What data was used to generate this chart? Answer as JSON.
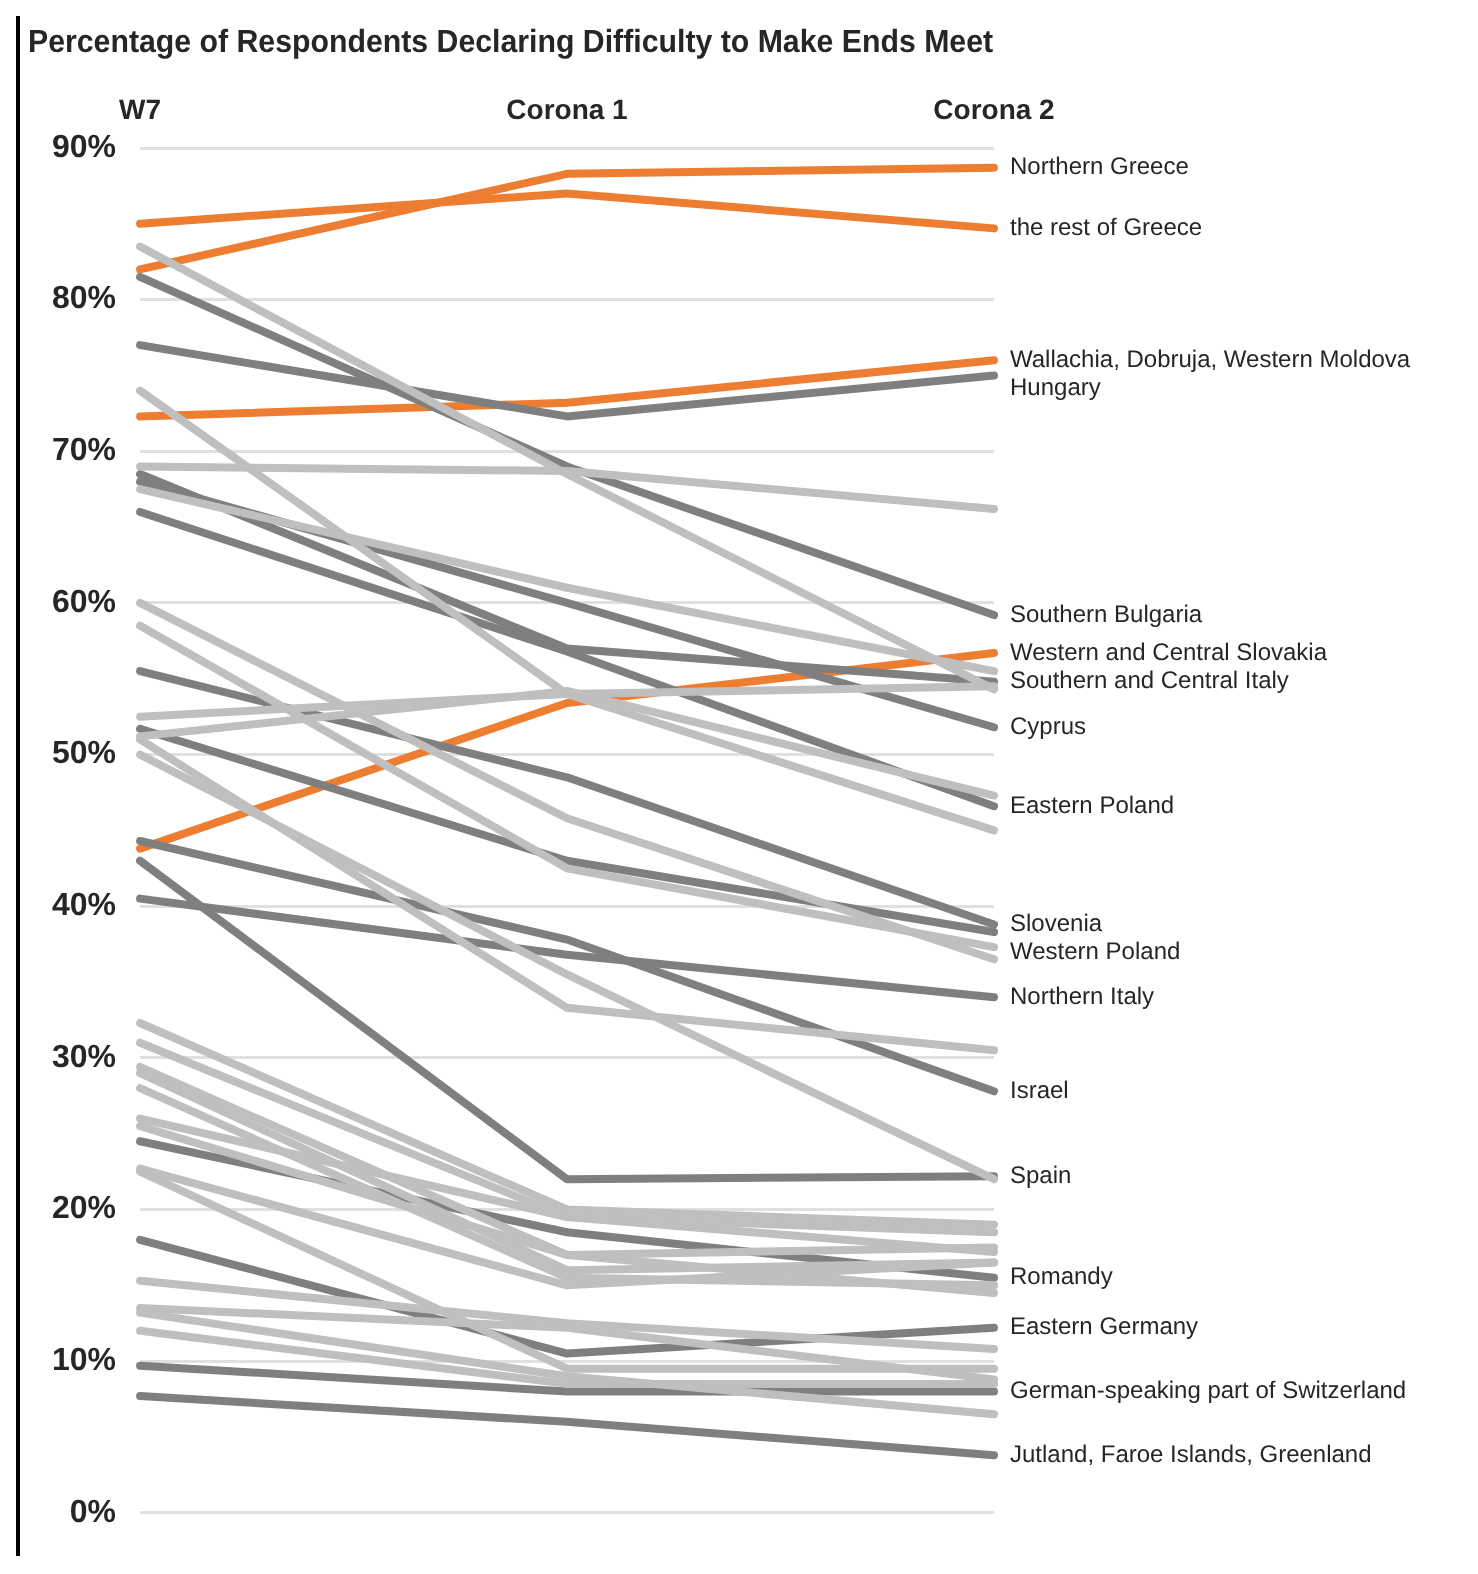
{
  "chart_data": {
    "type": "line",
    "title": "Percentage of Respondents Declaring Difficulty to Make Ends Meet",
    "categories": [
      "W7",
      "Corona 1",
      "Corona 2"
    ],
    "ylim": [
      0,
      90
    ],
    "yticks": [
      {
        "value": 0,
        "label": "0%"
      },
      {
        "value": 10,
        "label": "10%"
      },
      {
        "value": 20,
        "label": "20%"
      },
      {
        "value": 30,
        "label": "30%"
      },
      {
        "value": 40,
        "label": "40%"
      },
      {
        "value": 50,
        "label": "50%"
      },
      {
        "value": 60,
        "label": "60%"
      },
      {
        "value": 70,
        "label": "70%"
      },
      {
        "value": 80,
        "label": "80%"
      },
      {
        "value": 90,
        "label": "90%"
      }
    ],
    "grid": "y",
    "marker": "none",
    "line_style": "solid",
    "series": [
      {
        "color": "#bfbfbf",
        "values": [
          83.5,
          68.5,
          54.3
        ]
      },
      {
        "color": "#bfbfbf",
        "values": [
          69,
          68.7,
          66.2
        ]
      },
      {
        "color": "#bfbfbf",
        "values": [
          74,
          54,
          45
        ]
      },
      {
        "color": "#bfbfbf",
        "values": [
          67.5,
          61,
          55.5
        ]
      },
      {
        "color": "#bfbfbf",
        "values": [
          60,
          45.8,
          36.5
        ]
      },
      {
        "color": "#bfbfbf",
        "values": [
          58.5,
          42.5,
          37.3
        ]
      },
      {
        "color": "#bfbfbf",
        "values": [
          52.5,
          54,
          54.5
        ]
      },
      {
        "color": "#bfbfbf",
        "values": [
          51.2,
          54.2,
          47.3
        ]
      },
      {
        "color": "#bfbfbf",
        "values": [
          50,
          35.5,
          22
        ]
      },
      {
        "color": "#bfbfbf",
        "values": [
          51,
          33.3,
          30.5
        ]
      },
      {
        "color": "#bfbfbf",
        "values": [
          32.3,
          20,
          19
        ]
      },
      {
        "color": "#bfbfbf",
        "values": [
          31,
          19.5,
          18.5
        ]
      },
      {
        "color": "#bfbfbf",
        "values": [
          29.4,
          17,
          17.5
        ]
      },
      {
        "color": "#bfbfbf",
        "values": [
          29,
          16,
          16.5
        ]
      },
      {
        "color": "#bfbfbf",
        "values": [
          28,
          15.5,
          15
        ]
      },
      {
        "color": "#bfbfbf",
        "values": [
          26,
          19.5,
          17.2
        ]
      },
      {
        "color": "#bfbfbf",
        "values": [
          25.5,
          17,
          14.5
        ]
      },
      {
        "color": "#bfbfbf",
        "values": [
          22.7,
          15,
          16.5
        ]
      },
      {
        "color": "#bfbfbf",
        "values": [
          22.5,
          9.5,
          9.5
        ]
      },
      {
        "color": "#bfbfbf",
        "values": [
          15.3,
          12.5,
          10.8
        ]
      },
      {
        "color": "#bfbfbf",
        "values": [
          13.5,
          12.2,
          8.8
        ]
      },
      {
        "color": "#bfbfbf",
        "values": [
          13.2,
          9,
          6.5
        ]
      },
      {
        "color": "#bfbfbf",
        "values": [
          12,
          8.5,
          8.5
        ]
      },
      {
        "name": "Hungary",
        "color": "#7f7f7f",
        "values": [
          77,
          72.3,
          75
        ]
      },
      {
        "name": "Southern Bulgaria",
        "color": "#7f7f7f",
        "values": [
          81.5,
          69,
          59.2
        ]
      },
      {
        "name": "Southern and Central Italy",
        "color": "#7f7f7f",
        "values": [
          68.5,
          57,
          54.8
        ]
      },
      {
        "name": "Cyprus",
        "color": "#7f7f7f",
        "values": [
          68,
          60,
          51.8
        ]
      },
      {
        "name": "Eastern Poland",
        "color": "#7f7f7f",
        "values": [
          66,
          56.8,
          46.6
        ]
      },
      {
        "name": "Slovenia",
        "color": "#7f7f7f",
        "values": [
          55.5,
          48.5,
          38.8
        ]
      },
      {
        "name": "Western Poland",
        "color": "#7f7f7f",
        "values": [
          51.7,
          43,
          38.3
        ]
      },
      {
        "name": "Northern Italy",
        "color": "#7f7f7f",
        "values": [
          40.5,
          36.8,
          34
        ]
      },
      {
        "name": "Israel",
        "color": "#7f7f7f",
        "values": [
          44.3,
          37.8,
          27.8
        ]
      },
      {
        "name": "Spain",
        "color": "#7f7f7f",
        "values": [
          43,
          22,
          22.2
        ]
      },
      {
        "name": "Romandy",
        "color": "#7f7f7f",
        "values": [
          24.5,
          18.5,
          15.5
        ]
      },
      {
        "name": "Eastern Germany",
        "color": "#7f7f7f",
        "values": [
          18,
          10.5,
          12.2
        ]
      },
      {
        "name": "German-speaking part of Switzerland",
        "color": "#7f7f7f",
        "values": [
          9.7,
          8,
          8
        ]
      },
      {
        "name": "Jutland, Faroe Islands, Greenland",
        "color": "#7f7f7f",
        "values": [
          7.7,
          6,
          3.8
        ]
      },
      {
        "name": "Northern Greece",
        "color": "#ed7d31",
        "values": [
          82,
          88.3,
          88.7
        ]
      },
      {
        "name": "the rest of Greece",
        "color": "#ed7d31",
        "values": [
          85,
          87,
          84.7
        ]
      },
      {
        "name": "Wallachia, Dobruja, Western Moldova",
        "color": "#ed7d31",
        "values": [
          72.3,
          73.2,
          76
        ]
      },
      {
        "name": "Western and Central Slovakia",
        "color": "#ed7d31",
        "values": [
          43.8,
          53.4,
          56.7
        ]
      }
    ]
  }
}
